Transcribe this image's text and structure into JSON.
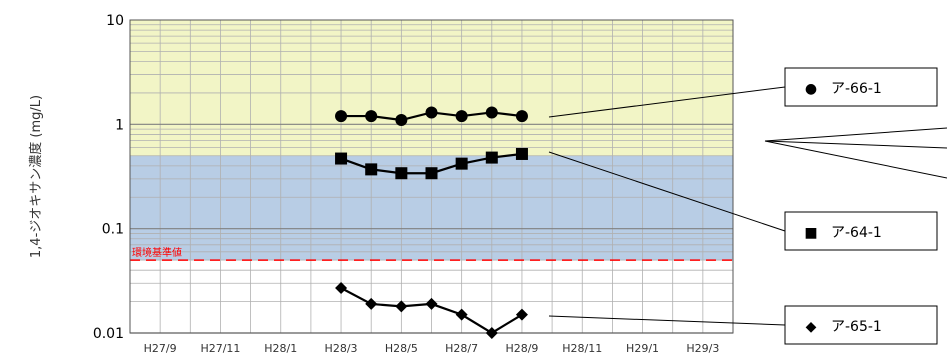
{
  "chart_data": {
    "type": "line",
    "title": "",
    "xlabel": "",
    "ylabel": "1,4-ジオキサン濃度 (mg/L)",
    "yscale": "log",
    "ylim": [
      0.01,
      10
    ],
    "y_ticks": [
      "10",
      "1",
      "0.1",
      "0.01"
    ],
    "x_tick_labels": [
      "H27/9",
      "H27/11",
      "H28/1",
      "H28/3",
      "H28/5",
      "H28/7",
      "H28/9",
      "H28/11",
      "H29/1",
      "H29/3"
    ],
    "grid": true,
    "bands": [
      {
        "from": 0.5,
        "to": 10,
        "color": "#f2f5c6"
      },
      {
        "from": 0.05,
        "to": 0.5,
        "color": "#b8cde5"
      }
    ],
    "reference_line": {
      "label": "環境基準値",
      "value": 0.05,
      "color": "#ff0000"
    },
    "x": [
      "H28/3",
      "H28/4",
      "H28/5",
      "H28/6",
      "H28/7",
      "H28/8",
      "H28/9"
    ],
    "series": [
      {
        "name": "ア-66-1",
        "marker": "circle",
        "values": [
          1.2,
          1.2,
          1.1,
          1.3,
          1.2,
          1.3,
          1.2
        ]
      },
      {
        "name": "ア-64-1",
        "marker": "square",
        "values": [
          0.47,
          0.37,
          0.34,
          0.34,
          0.42,
          0.48,
          0.52
        ]
      },
      {
        "name": "ア-65-1",
        "marker": "diamond",
        "values": [
          0.027,
          0.019,
          0.018,
          0.019,
          0.015,
          0.01,
          0.015
        ]
      }
    ],
    "legend": [
      {
        "symbol": "●",
        "label": "ア-66-1"
      },
      {
        "symbol": "■",
        "label": "ア-64-1"
      },
      {
        "symbol": "◆",
        "label": "ア-65-1"
      }
    ]
  }
}
